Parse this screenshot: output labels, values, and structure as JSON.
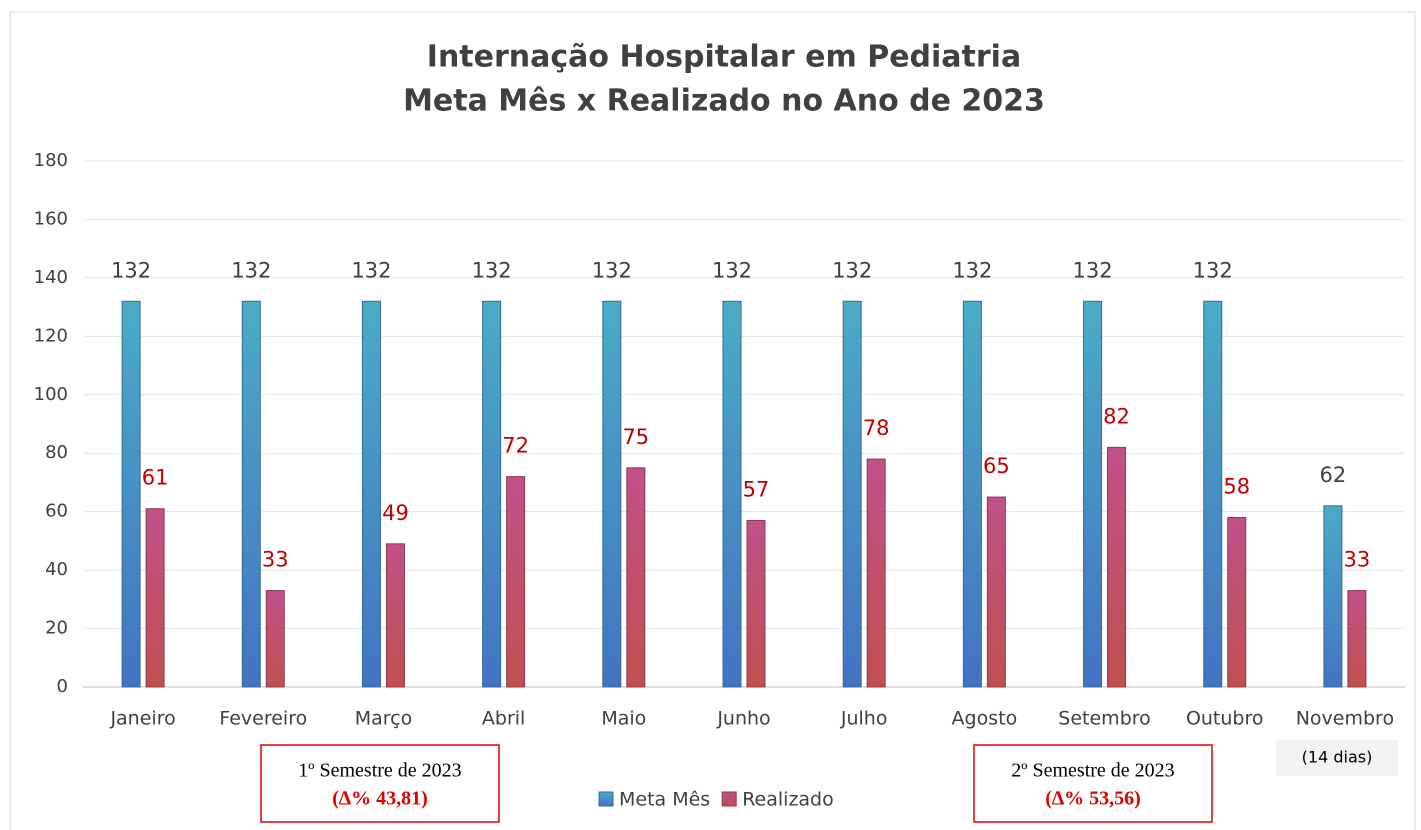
{
  "chart_data": {
    "type": "bar",
    "title": "Internação Hospitalar em Pediatria",
    "subtitle": "Meta Mês x Realizado no Ano de 2023",
    "categories": [
      "Janeiro",
      "Fevereiro",
      "Março",
      "Abril",
      "Maio",
      "Junho",
      "Julho",
      "Agosto",
      "Setembro",
      "Outubro",
      "Novembro"
    ],
    "series": [
      {
        "name": "Meta Mês",
        "color": "#4bacc6",
        "values": [
          132,
          132,
          132,
          132,
          132,
          132,
          132,
          132,
          132,
          132,
          62
        ]
      },
      {
        "name": "Realizado",
        "color": "#c0508a",
        "values": [
          61,
          33,
          49,
          72,
          75,
          57,
          78,
          65,
          82,
          58,
          33
        ]
      }
    ],
    "ylim": [
      0,
      180
    ],
    "yticks": [
      0,
      20,
      40,
      60,
      80,
      100,
      120,
      140,
      160,
      180
    ],
    "grid": true,
    "note": "(14 dias)",
    "boxes": [
      {
        "title": "1º Semestre de 2023",
        "value": "(∆% 43,81)"
      },
      {
        "title": "2º Semestre de 2023",
        "value": "(∆% 53,56)"
      }
    ]
  }
}
